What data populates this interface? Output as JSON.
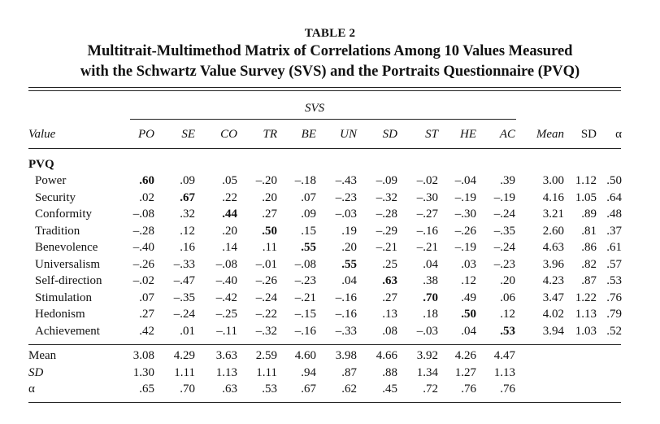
{
  "table": {
    "number": "TABLE 2",
    "title_line1": "Multitrait-Multimethod Matrix of Correlations Among 10 Values Measured",
    "title_line2": "with the Schwartz Value Survey (SVS) and the Portraits Questionnaire (PVQ)",
    "svs_label": "SVS",
    "value_col_label": "Value",
    "columns": [
      "PO",
      "SE",
      "CO",
      "TR",
      "BE",
      "UN",
      "SD",
      "ST",
      "HE",
      "AC"
    ],
    "stat_columns": [
      "Mean",
      "SD",
      "α"
    ],
    "section_label": "PVQ",
    "rows": [
      {
        "label": "Power",
        "cells": [
          ".60",
          ".09",
          ".05",
          "–.20",
          "–.18",
          "–.43",
          "–.09",
          "–.02",
          "–.04",
          ".39"
        ],
        "mean": "3.00",
        "sd": "1.12",
        "alpha": ".50",
        "diag": 0
      },
      {
        "label": "Security",
        "cells": [
          ".02",
          ".67",
          ".22",
          ".20",
          ".07",
          "–.23",
          "–.32",
          "–.30",
          "–.19",
          "–.19"
        ],
        "mean": "4.16",
        "sd": "1.05",
        "alpha": ".64",
        "diag": 1
      },
      {
        "label": "Conformity",
        "cells": [
          "–.08",
          ".32",
          ".44",
          ".27",
          ".09",
          "–.03",
          "–.28",
          "–.27",
          "–.30",
          "–.24"
        ],
        "mean": "3.21",
        "sd": ".89",
        "alpha": ".48",
        "diag": 2
      },
      {
        "label": "Tradition",
        "cells": [
          "–.28",
          ".12",
          ".20",
          ".50",
          ".15",
          ".19",
          "–.29",
          "–.16",
          "–.26",
          "–.35"
        ],
        "mean": "2.60",
        "sd": ".81",
        "alpha": ".37",
        "diag": 3
      },
      {
        "label": "Benevolence",
        "cells": [
          "–.40",
          ".16",
          ".14",
          ".11",
          ".55",
          ".20",
          "–.21",
          "–.21",
          "–.19",
          "–.24"
        ],
        "mean": "4.63",
        "sd": ".86",
        "alpha": ".61",
        "diag": 4
      },
      {
        "label": "Universalism",
        "cells": [
          "–.26",
          "–.33",
          "–.08",
          "–.01",
          "–.08",
          ".55",
          ".25",
          ".04",
          ".03",
          "–.23"
        ],
        "mean": "3.96",
        "sd": ".82",
        "alpha": ".57",
        "diag": 5
      },
      {
        "label": "Self-direction",
        "cells": [
          "–.02",
          "–.47",
          "–.40",
          "–.26",
          "–.23",
          ".04",
          ".63",
          ".38",
          ".12",
          ".20"
        ],
        "mean": "4.23",
        "sd": ".87",
        "alpha": ".53",
        "diag": 6
      },
      {
        "label": "Stimulation",
        "cells": [
          ".07",
          "–.35",
          "–.42",
          "–.24",
          "–.21",
          "–.16",
          ".27",
          ".70",
          ".49",
          ".06"
        ],
        "mean": "3.47",
        "sd": "1.22",
        "alpha": ".76",
        "diag": 7
      },
      {
        "label": "Hedonism",
        "cells": [
          ".27",
          "–.24",
          "–.25",
          "–.22",
          "–.15",
          "–.16",
          ".13",
          ".18",
          ".50",
          ".12"
        ],
        "mean": "4.02",
        "sd": "1.13",
        "alpha": ".79",
        "diag": 8
      },
      {
        "label": "Achievement",
        "cells": [
          ".42",
          ".01",
          "–.11",
          "–.32",
          "–.16",
          "–.33",
          ".08",
          "–.03",
          ".04",
          ".53"
        ],
        "mean": "3.94",
        "sd": "1.03",
        "alpha": ".52",
        "diag": 9
      }
    ],
    "footer_rows": [
      {
        "label": "Mean",
        "italic": false,
        "cells": [
          "3.08",
          "4.29",
          "3.63",
          "2.59",
          "4.60",
          "3.98",
          "4.66",
          "3.92",
          "4.26",
          "4.47"
        ]
      },
      {
        "label": "SD",
        "italic": true,
        "cells": [
          "1.30",
          "1.11",
          "1.13",
          "1.11",
          ".94",
          ".87",
          ".88",
          "1.34",
          "1.27",
          "1.13"
        ]
      },
      {
        "label": "α",
        "italic": false,
        "cells": [
          ".65",
          ".70",
          ".63",
          ".53",
          ".67",
          ".62",
          ".45",
          ".72",
          ".76",
          ".76"
        ]
      }
    ]
  }
}
